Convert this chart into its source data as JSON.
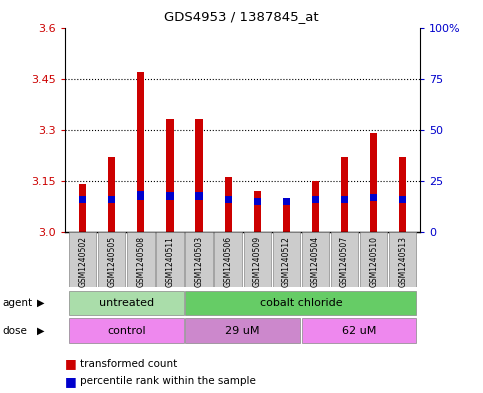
{
  "title": "GDS4953 / 1387845_at",
  "samples": [
    "GSM1240502",
    "GSM1240505",
    "GSM1240508",
    "GSM1240511",
    "GSM1240503",
    "GSM1240506",
    "GSM1240509",
    "GSM1240512",
    "GSM1240504",
    "GSM1240507",
    "GSM1240510",
    "GSM1240513"
  ],
  "red_values": [
    3.14,
    3.22,
    3.47,
    3.33,
    3.33,
    3.16,
    3.12,
    3.08,
    3.15,
    3.22,
    3.29,
    3.22
  ],
  "blue_positions": [
    3.085,
    3.085,
    3.095,
    3.095,
    3.095,
    3.085,
    3.08,
    3.08,
    3.085,
    3.085,
    3.09,
    3.085
  ],
  "blue_heights": [
    0.02,
    0.02,
    0.025,
    0.022,
    0.022,
    0.02,
    0.02,
    0.02,
    0.02,
    0.02,
    0.022,
    0.02
  ],
  "ymin": 3.0,
  "ymax": 3.6,
  "yticks_left": [
    3.0,
    3.15,
    3.3,
    3.45,
    3.6
  ],
  "yticks_right": [
    0,
    25,
    50,
    75,
    100
  ],
  "ytick_labels_right": [
    "0",
    "25",
    "50",
    "75",
    "100%"
  ],
  "agent_groups": [
    {
      "label": "untreated",
      "start": 0,
      "end": 4,
      "color": "#aaddaa"
    },
    {
      "label": "cobalt chloride",
      "start": 4,
      "end": 12,
      "color": "#66cc66"
    }
  ],
  "dose_groups": [
    {
      "label": "control",
      "start": 0,
      "end": 4,
      "color": "#ee88ee"
    },
    {
      "label": "29 uM",
      "start": 4,
      "end": 8,
      "color": "#cc88cc"
    },
    {
      "label": "62 uM",
      "start": 8,
      "end": 12,
      "color": "#ee88ee"
    }
  ],
  "bar_color_red": "#cc0000",
  "bar_color_blue": "#0000cc",
  "bar_width": 0.25,
  "bg_color": "#ffffff",
  "plot_bg": "#ffffff",
  "tick_color_left": "#cc0000",
  "tick_color_right": "#0000cc",
  "legend_red": "transformed count",
  "legend_blue": "percentile rank within the sample",
  "sample_bg": "#cccccc"
}
